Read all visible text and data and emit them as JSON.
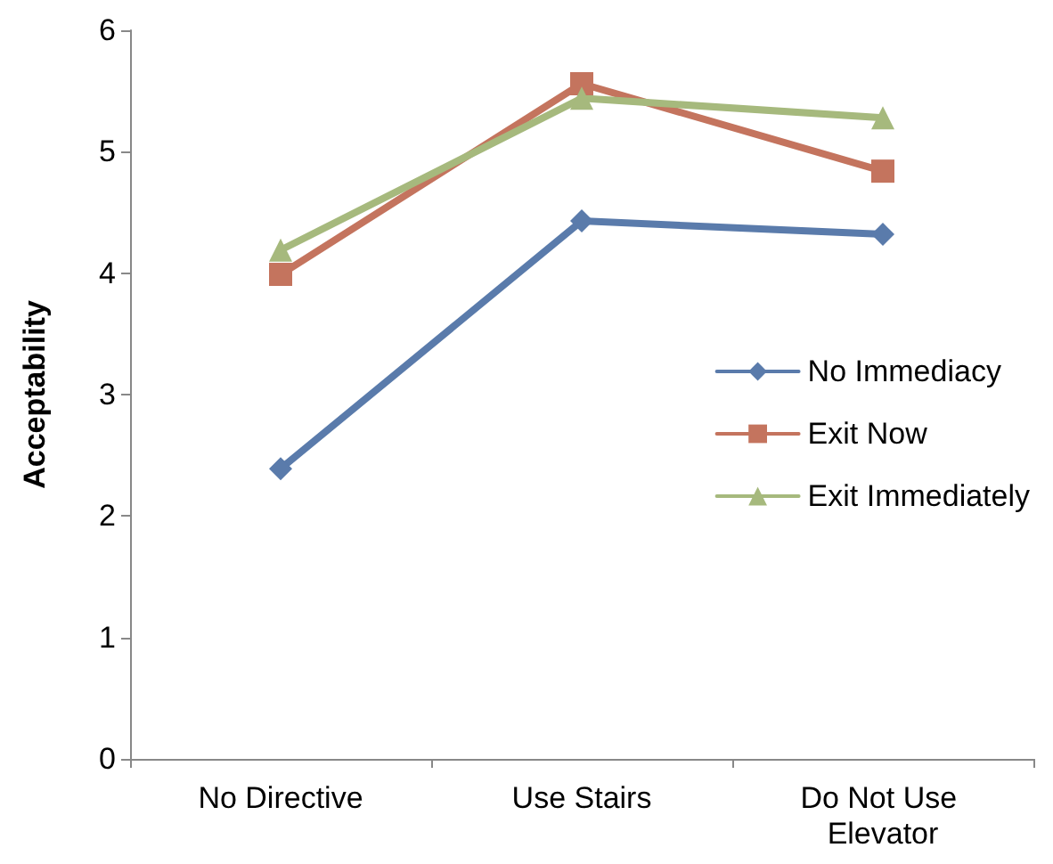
{
  "chart_data": {
    "type": "line",
    "ylabel": "Acceptability",
    "categories": [
      "No Directive",
      "Use Stairs",
      "Do Not Use Elevator"
    ],
    "series": [
      {
        "name": "No Immediacy",
        "color": "#5a7bab",
        "marker": "diamond",
        "values": [
          2.39,
          4.43,
          4.32
        ]
      },
      {
        "name": "Exit Now",
        "color": "#c4745e",
        "marker": "square",
        "values": [
          3.99,
          5.56,
          4.84
        ]
      },
      {
        "name": "Exit Immediately",
        "color": "#a6b97d",
        "marker": "triangle",
        "values": [
          4.19,
          5.44,
          5.28
        ]
      }
    ],
    "ylim": [
      0,
      6
    ],
    "yticks": [
      0,
      1,
      2,
      3,
      4,
      5,
      6
    ],
    "grid": false,
    "legend": "right",
    "line_style": "solid"
  }
}
